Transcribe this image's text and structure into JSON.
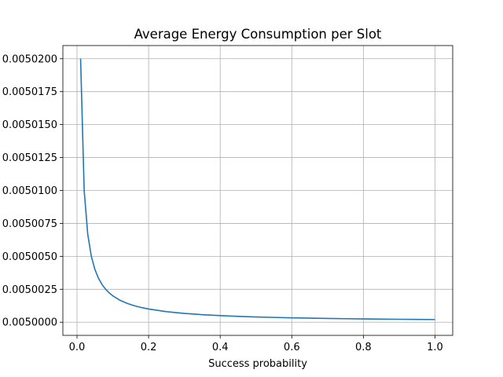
{
  "chart_data": {
    "type": "line",
    "title": "Average Energy Consumption per Slot",
    "xlabel": "Success probability",
    "ylabel": "",
    "xlim": [
      -0.0395,
      1.0495
    ],
    "ylim": [
      0.004999,
      0.005021
    ],
    "grid": true,
    "legend": "none",
    "line_color": "#1f77b4",
    "x_ticks": [
      0.0,
      0.2,
      0.4,
      0.6,
      0.8,
      1.0
    ],
    "x_tick_labels": [
      "0.0",
      "0.2",
      "0.4",
      "0.6",
      "0.8",
      "1.0"
    ],
    "y_ticks": [
      0.005,
      0.0050025,
      0.005005,
      0.0050075,
      0.00501,
      0.0050125,
      0.005015,
      0.0050175,
      0.00502
    ],
    "y_tick_labels": [
      "0.0050000",
      "0.0050025",
      "0.0050050",
      "0.0050075",
      "0.0050100",
      "0.0050125",
      "0.0050150",
      "0.0050175",
      "0.0050200"
    ],
    "series": [
      {
        "x": [
          0.01,
          0.02,
          0.03,
          0.04,
          0.05,
          0.06,
          0.07,
          0.08,
          0.09,
          0.1,
          0.12,
          0.14,
          0.16,
          0.18,
          0.2,
          0.25,
          0.3,
          0.35,
          0.4,
          0.45,
          0.5,
          0.55,
          0.6,
          0.65,
          0.7,
          0.75,
          0.8,
          0.85,
          0.9,
          0.95,
          1.0
        ],
        "y": [
          0.00502,
          0.00501,
          0.0050066667,
          0.005005,
          0.005004,
          0.0050033333,
          0.0050028571,
          0.0050025,
          0.0050022222,
          0.005002,
          0.0050016667,
          0.0050014286,
          0.00500125,
          0.0050011111,
          0.005001,
          0.0050008,
          0.0050006667,
          0.0050005714,
          0.0050005,
          0.0050004444,
          0.0050004,
          0.0050003636,
          0.0050003333,
          0.0050003077,
          0.0050002857,
          0.0050002667,
          0.00500025,
          0.0050002353,
          0.0050002222,
          0.0050002105,
          0.0050002
        ]
      }
    ]
  }
}
